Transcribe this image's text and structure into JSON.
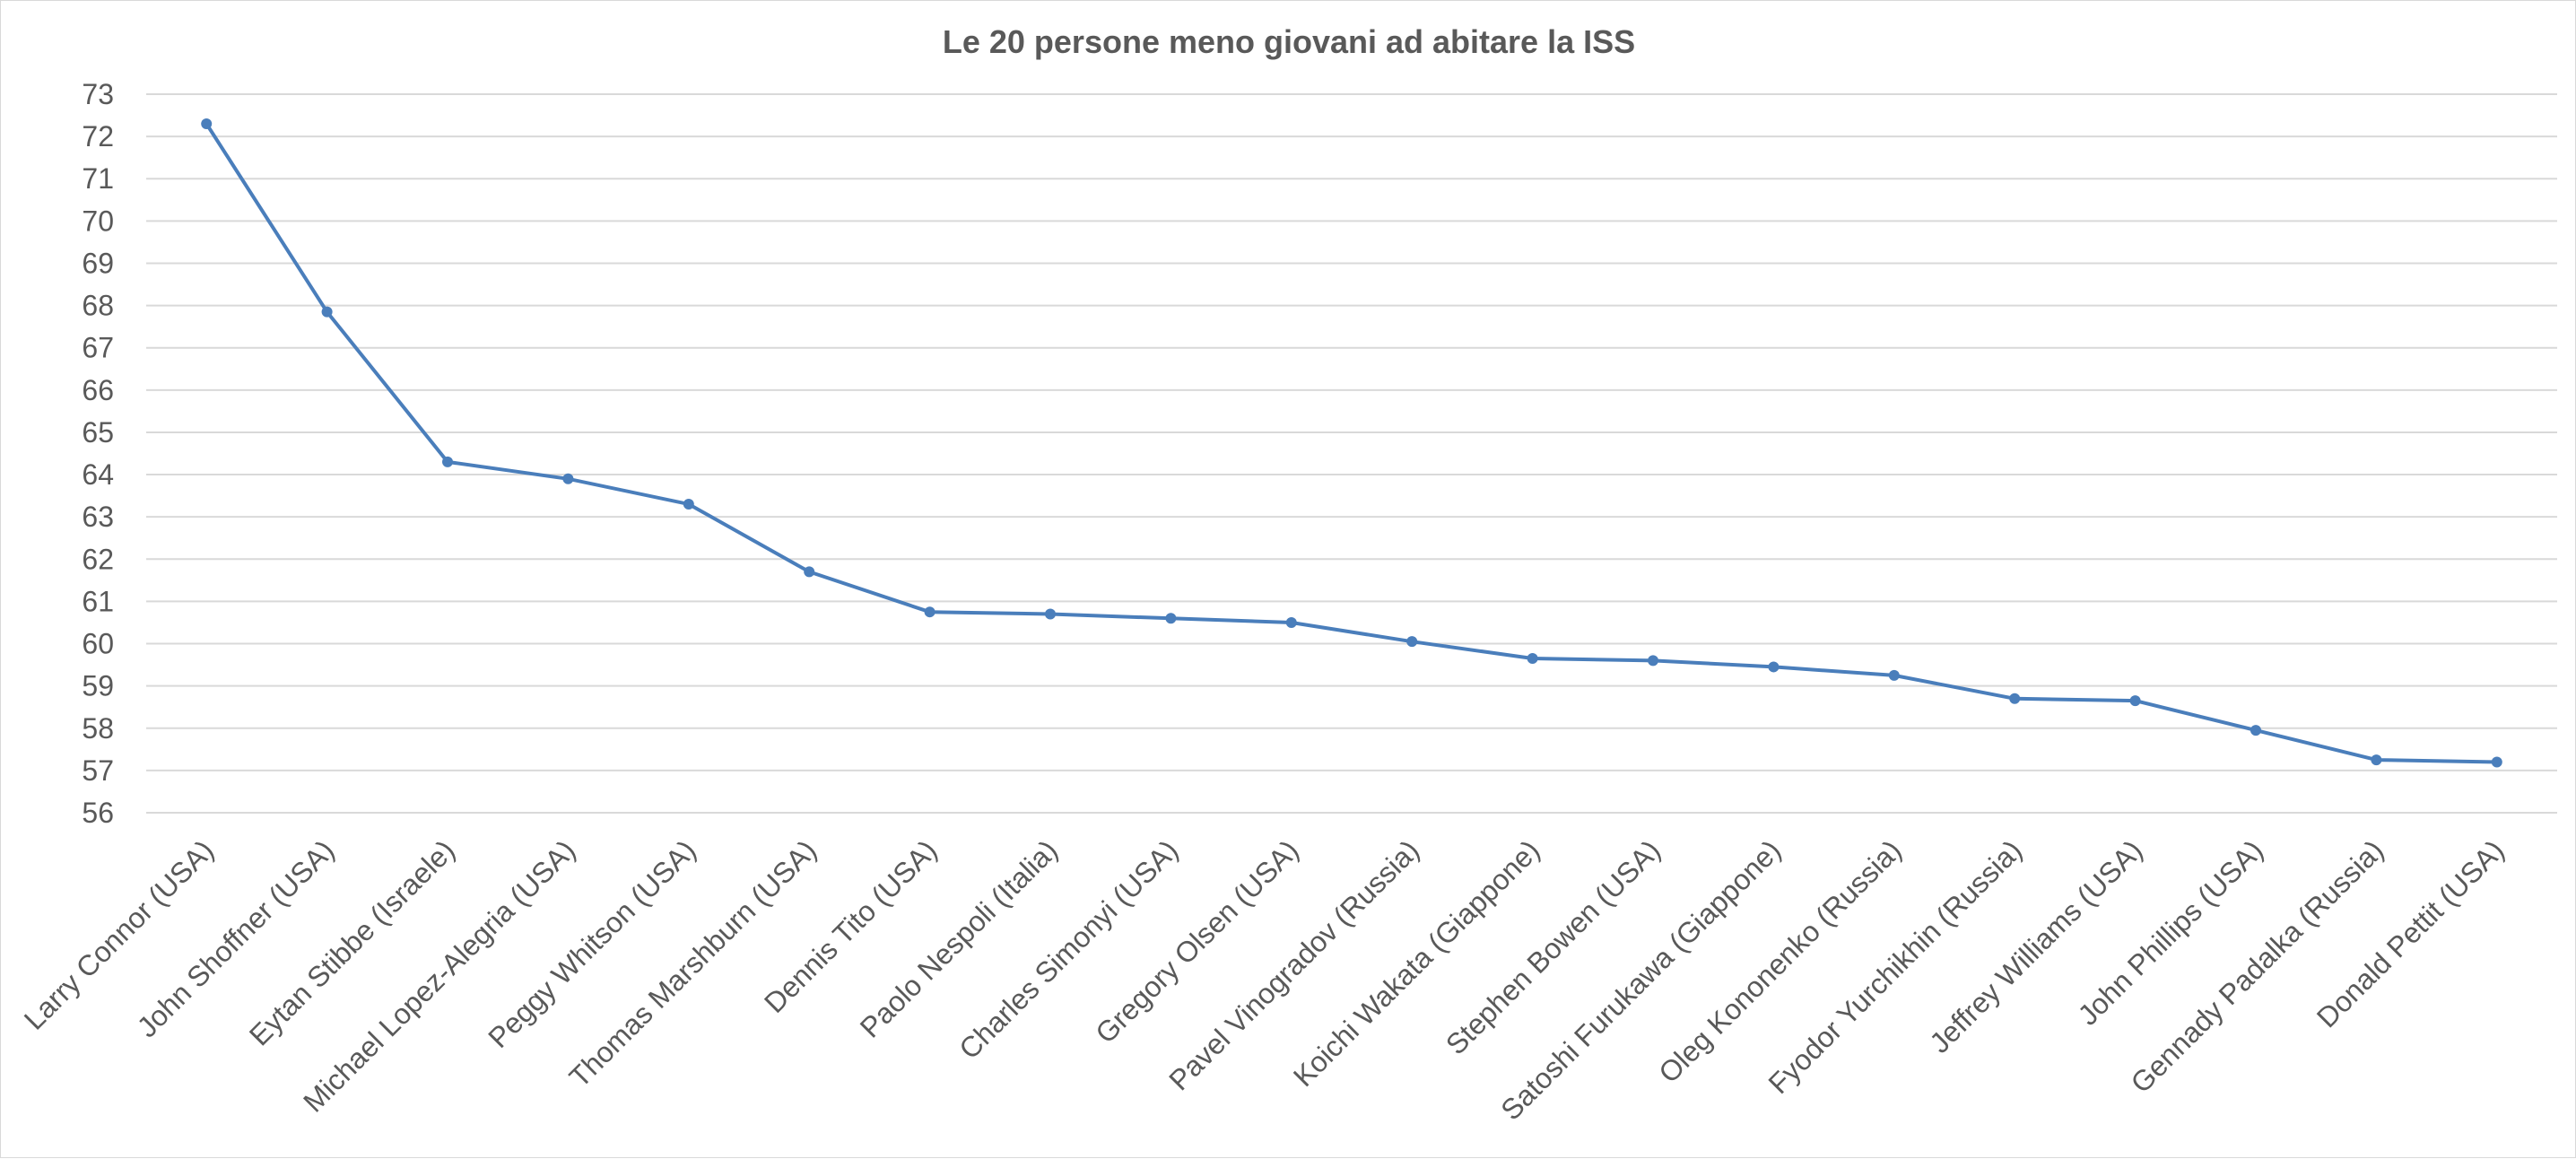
{
  "chart_data": {
    "type": "line",
    "title": "Le 20 persone meno giovani ad abitare la ISS",
    "xlabel": "",
    "ylabel": "",
    "ylim": [
      56,
      73
    ],
    "ytick_step": 1,
    "grid": true,
    "legend": "none",
    "categories": [
      "Larry Connor (USA)",
      "John Shoffner (USA)",
      "Eytan Stibbe (Israele)",
      "Michael Lopez-Alegria (USA)",
      "Peggy Whitson (USA)",
      "Thomas Marshburn (USA)",
      "Dennis Tito (USA)",
      "Paolo Nespoli (Italia)",
      "Charles Simonyi (USA)",
      "Gregory Olsen (USA)",
      "Pavel Vinogradov (Russia)",
      "Koichi Wakata (Giappone)",
      "Stephen Bowen (USA)",
      "Satoshi Furukawa (Giappone)",
      "Oleg Kononenko (Russia)",
      "Fyodor Yurchikhin (Russia)",
      "Jeffrey Williams (USA)",
      "John Phillips (USA)",
      "Gennady Padalka (Russia)",
      "Donald Pettit (USA)"
    ],
    "series": [
      {
        "values": [
          72.3,
          67.85,
          64.3,
          63.9,
          63.3,
          61.7,
          60.75,
          60.7,
          60.6,
          60.5,
          60.05,
          59.65,
          59.6,
          59.45,
          59.25,
          58.7,
          58.65,
          57.95,
          57.25,
          57.2
        ],
        "color": "#4a7ebb"
      }
    ]
  }
}
